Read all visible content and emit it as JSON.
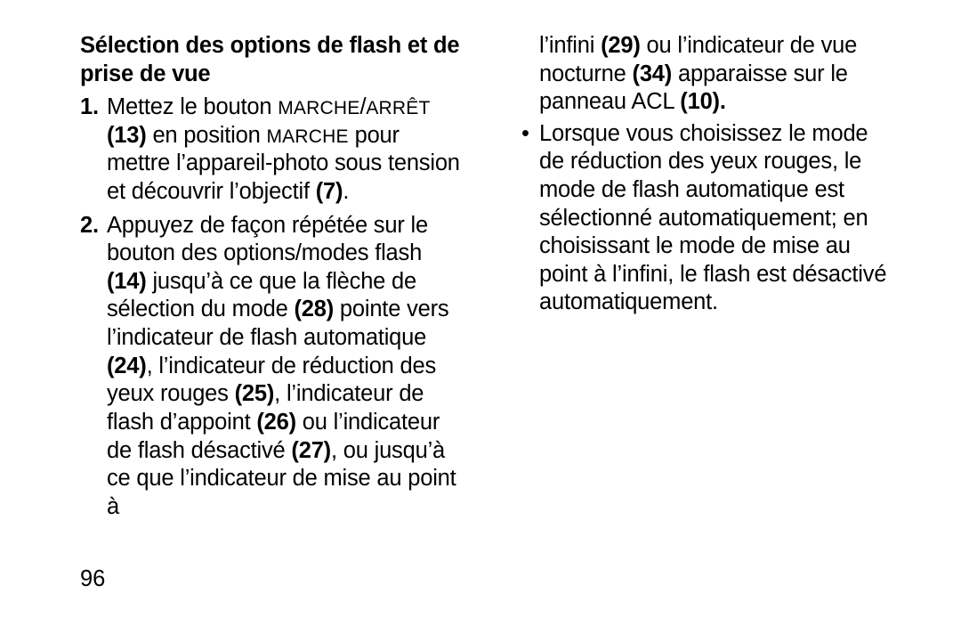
{
  "pageNumber": "96",
  "heading": "Sélection des options de flash et de prise de vue",
  "item1_num": "1.",
  "item1_a": "Mettez le bouton ",
  "item1_sc1": "MARCHE",
  "item1_slash": "/",
  "item1_sc2": "ARRÊT",
  "item1_sp": " ",
  "item1_ref1": "(13)",
  "item1_b": " en position ",
  "item1_sc3": "MARCHE",
  "item1_c": " pour mettre l’appareil-photo sous tension et découvrir l’objectif ",
  "item1_ref2": "(7)",
  "item1_d": ".",
  "item2_num": "2.",
  "item2_a": "Appuyez de façon répétée sur le bouton des options/modes flash ",
  "item2_ref14": "(14)",
  "item2_b": " jusqu’à ce que la flèche de sélection du mode ",
  "item2_ref28": "(28)",
  "item2_c": " pointe vers l’indicateur de flash automatique ",
  "item2_ref24": "(24)",
  "item2_d": ", l’indicateur de réduction des yeux rouges ",
  "item2_ref25": "(25)",
  "item2_e": ", l’indicateur de flash d’appoint ",
  "item2_ref26": "(26)",
  "item2_f": " ou l’indicateur de flash désactivé ",
  "item2_ref27": "(27)",
  "item2_g": ", ou jusqu’à ce que l’indicateur de mise au point à ",
  "cont_a": "l’infini ",
  "cont_ref29": "(29)",
  "cont_b": " ou l’indicateur de vue nocturne ",
  "cont_ref34": "(34)",
  "cont_c": " apparaisse sur le panneau ACL ",
  "cont_ref10": "(10).",
  "bullet_dot": "•",
  "bullet_text": "Lorsque vous choisissez le mode de réduction des yeux rouges, le mode de flash automatique est sélectionné automatiquement; en choisissant le mode de mise au point à l’infini, le flash est désactivé automatiquement."
}
